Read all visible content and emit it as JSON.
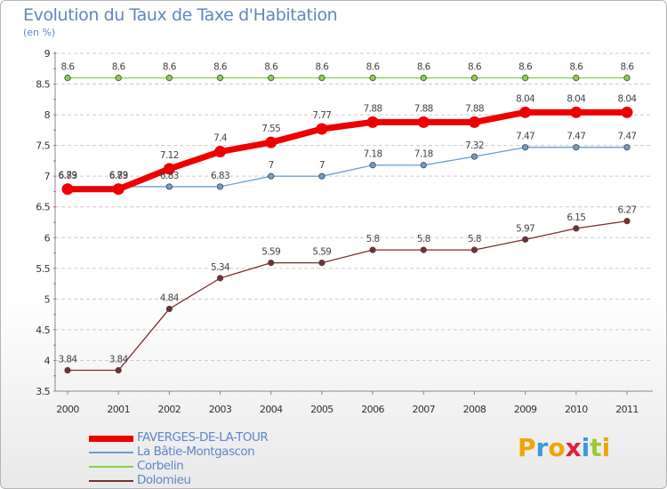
{
  "title": "Evolution du Taux de Taxe d'Habitation",
  "subtitle": "(en %)",
  "colors": {
    "title": "#5f86c6",
    "grid": "#cccccc",
    "background": "#ffffff"
  },
  "logo": {
    "text": "Proxiti",
    "letter_colors": [
      "#f0a500",
      "#3a9ad9",
      "#f0a500",
      "#e0203a",
      "#3a9ad9",
      "#9acd32",
      "#f0a500"
    ]
  },
  "chart_data": {
    "type": "line",
    "x": [
      "2000",
      "2001",
      "2002",
      "2003",
      "2004",
      "2005",
      "2006",
      "2007",
      "2008",
      "2009",
      "2010",
      "2011"
    ],
    "ylim": [
      3.5,
      9
    ],
    "yticks": [
      "3.5",
      "4",
      "4.5",
      "5",
      "5.5",
      "6",
      "6.5",
      "7",
      "7.5",
      "8",
      "8.5",
      "9"
    ],
    "grid": "horizontal dashed",
    "legend_position": "bottom-left",
    "series": [
      {
        "name": "FAVERGES-DE-LA-TOUR",
        "color": "#ee0000",
        "values": [
          6.79,
          6.79,
          7.12,
          7.4,
          7.55,
          7.77,
          7.88,
          7.88,
          7.88,
          8.04,
          8.04,
          8.04
        ],
        "labels": [
          "6.79",
          "6.79",
          "7.12",
          "7.4",
          "7.55",
          "7.77",
          "7.88",
          "7.88",
          "7.88",
          "8.04",
          "8.04",
          "8.04"
        ]
      },
      {
        "name": "La Bâtie-Montgascon",
        "color": "#6a9ecf",
        "values": [
          6.83,
          6.83,
          6.83,
          6.83,
          7,
          7,
          7.18,
          7.18,
          7.32,
          7.47,
          7.47,
          7.47
        ],
        "labels": [
          "6.83",
          "6.83",
          "6.83",
          "6.83",
          "7",
          "7",
          "7.18",
          "7.18",
          "7.32",
          "7.47",
          "7.47",
          "7.47"
        ]
      },
      {
        "name": "Corbelin",
        "color": "#8bd14a",
        "values": [
          8.6,
          8.6,
          8.6,
          8.6,
          8.6,
          8.6,
          8.6,
          8.6,
          8.6,
          8.6,
          8.6,
          8.6
        ],
        "labels": [
          "8.6",
          "8.6",
          "8.6",
          "8.6",
          "8.6",
          "8.6",
          "8.6",
          "8.6",
          "8.6",
          "8.6",
          "8.6",
          "8.6"
        ]
      },
      {
        "name": "Dolomieu",
        "color": "#7b2e2e",
        "values": [
          3.84,
          3.84,
          4.84,
          5.34,
          5.59,
          5.59,
          5.8,
          5.8,
          5.8,
          5.97,
          6.15,
          6.27
        ],
        "labels": [
          "3.84",
          "3.84",
          "4.84",
          "5.34",
          "5.59",
          "5.59",
          "5.8",
          "5.8",
          "5.8",
          "5.97",
          "6.15",
          "6.27"
        ]
      }
    ]
  }
}
